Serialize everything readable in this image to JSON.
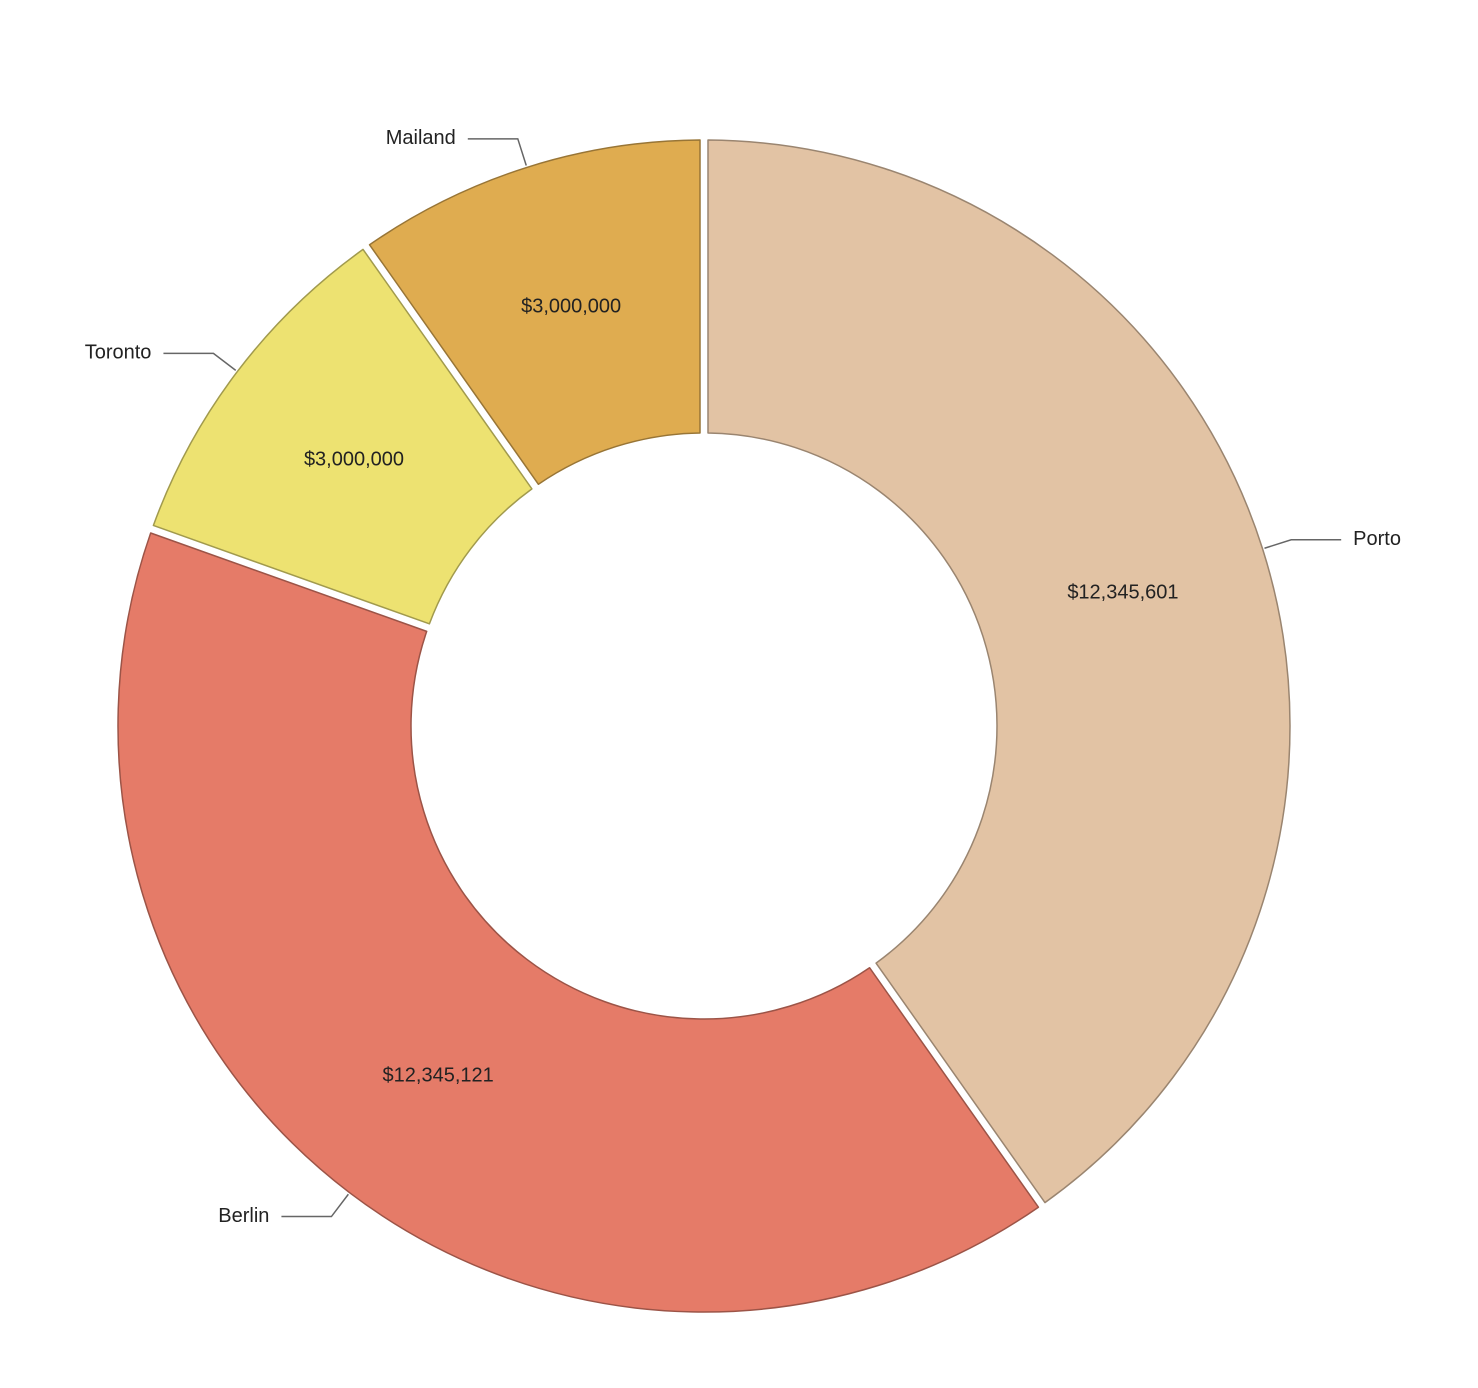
{
  "chart_data": {
    "type": "donut",
    "categories": [
      "Porto",
      "Berlin",
      "Toronto",
      "Mailand"
    ],
    "values": [
      12345601,
      12345121,
      3000000,
      3000000
    ],
    "value_labels": [
      "$12,345,601",
      "$12,345,121",
      "$3,000,000",
      "$3,000,000"
    ],
    "colors": [
      "#e2c3a4",
      "#e57b68",
      "#ede271",
      "#dfac50"
    ]
  }
}
